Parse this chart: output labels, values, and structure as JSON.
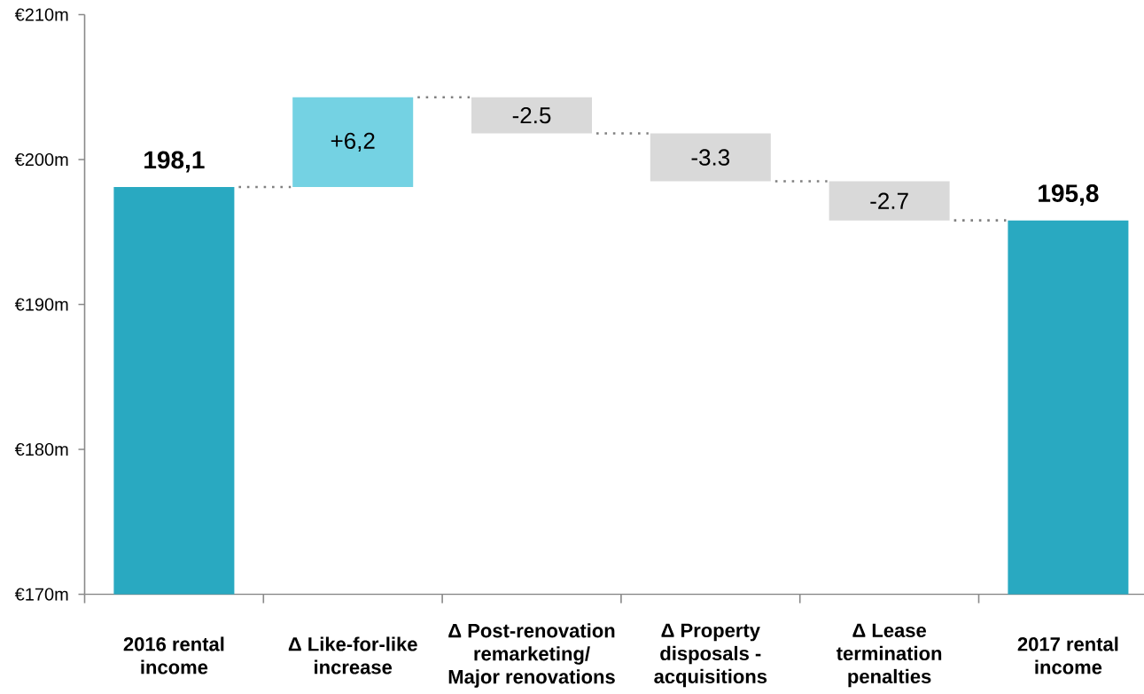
{
  "chart_data": {
    "type": "bar",
    "categories": [
      "2016 rental income",
      "Δ Like-for-like increase",
      "Δ Post-renovation remarketing/ Major renovations",
      "Δ Property disposals - acquisitions",
      "Δ Lease termination penalties",
      "2017 rental income"
    ],
    "values": [
      198.1,
      6.2,
      -2.5,
      -3.3,
      -2.7,
      195.8
    ],
    "base": [
      null,
      198.1,
      204.3,
      201.8,
      198.5,
      null
    ],
    "colors": [
      "#29a9c1",
      "#74d2e3",
      "#d9d9d9",
      "#d9d9d9",
      "#d9d9d9",
      "#29a9c1"
    ],
    "value_labels": [
      "198,1",
      "+6,2",
      "-2.5",
      "-3.3",
      "-2.7",
      "195,8"
    ],
    "ylim": [
      170,
      210
    ],
    "yticks": [
      {
        "value": 170,
        "label": "€170m"
      },
      {
        "value": 180,
        "label": "€180m"
      },
      {
        "value": 190,
        "label": "€190m"
      },
      {
        "value": 200,
        "label": "€200m"
      },
      {
        "value": 210,
        "label": "€210m"
      }
    ]
  }
}
